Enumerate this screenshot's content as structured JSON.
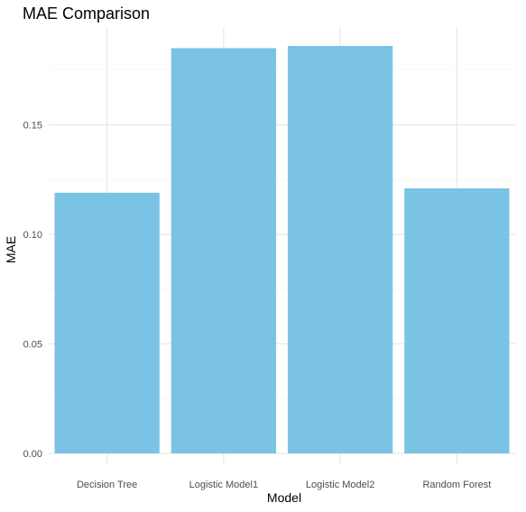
{
  "chart_data": {
    "type": "bar",
    "title": "MAE Comparison",
    "xlabel": "Model",
    "ylabel": "MAE",
    "categories": [
      "Decision Tree",
      "Logistic Model1",
      "Logistic Model2",
      "Random Forest"
    ],
    "values": [
      0.119,
      0.185,
      0.186,
      0.121
    ],
    "ylim": [
      0,
      0.1925
    ],
    "yticks": [
      0.0,
      0.05,
      0.1,
      0.15
    ],
    "ytick_labels": [
      "0.00",
      "0.05",
      "0.10",
      "0.15"
    ],
    "grid": true,
    "legend": "none",
    "bar_color": "#7AC3E4",
    "grid_major_color": "#E6E6E6",
    "grid_minor_color": "#F2F2F2"
  }
}
